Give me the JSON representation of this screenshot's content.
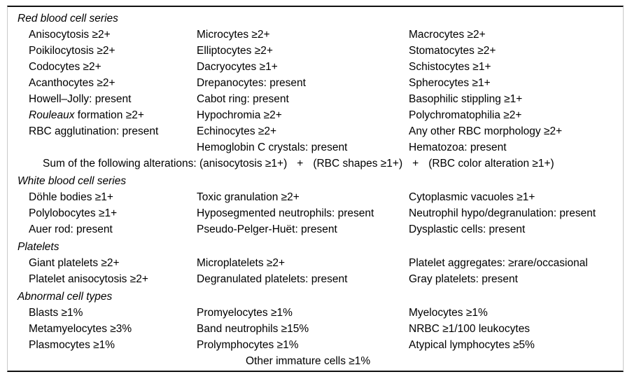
{
  "rbc": {
    "title": "Red blood cell series",
    "rows": [
      {
        "c1": "Anisocytosis ≥2+",
        "c2": "Microcytes ≥2+",
        "c3": "Macrocytes ≥2+"
      },
      {
        "c1": "Poikilocytosis ≥2+",
        "c2": "Elliptocytes ≥2+",
        "c3": "Stomatocytes ≥2+"
      },
      {
        "c1": "Codocytes ≥2+",
        "c2": "Dacryocytes ≥1+",
        "c3": "Schistocytes ≥1+"
      },
      {
        "c1": "Acanthocytes ≥2+",
        "c2": "Drepanocytes: present",
        "c3": "Spherocytes ≥1+"
      },
      {
        "c1": "Howell–Jolly: present",
        "c2": "Cabot ring: present",
        "c3": "Basophilic stippling ≥1+"
      },
      {
        "c1_italic": "Rouleaux",
        "c1_rest": " formation ≥2+",
        "c2": "Hypochromia ≥2+",
        "c3": "Polychromatophilia ≥2+"
      },
      {
        "c1": "RBC agglutination: present",
        "c2": "Echinocytes ≥2+",
        "c3": "Any other RBC morphology ≥2+"
      },
      {
        "c1": "",
        "c2": "Hemoglobin C crystals: present",
        "c3": "Hematozoa: present"
      }
    ],
    "sum": {
      "p1": "Sum of the following alterations: (anisocytosis ≥1+)",
      "plus1": "+",
      "p2": "(RBC shapes ≥1+)",
      "plus2": "+",
      "p3": "(RBC color alteration ≥1+)"
    }
  },
  "wbc": {
    "title": "White blood cell series",
    "rows": [
      {
        "c1": "Döhle bodies ≥1+",
        "c2": "Toxic granulation ≥2+",
        "c3": "Cytoplasmic vacuoles ≥1+"
      },
      {
        "c1": "Polylobocytes ≥1+",
        "c2": "Hyposegmented neutrophils: present",
        "c3": "Neutrophil hypo/degranulation: present"
      },
      {
        "c1": "Auer rod: present",
        "c2": "Pseudo-Pelger-Huët: present",
        "c3": "Dysplastic cells: present"
      }
    ]
  },
  "platelets": {
    "title": "Platelets",
    "rows": [
      {
        "c1": "Giant platelets ≥2+",
        "c2": "Microplatelets ≥2+",
        "c3": "Platelet aggregates: ≥rare/occasional"
      },
      {
        "c1": "Platelet anisocytosis ≥2+",
        "c2": "Degranulated platelets: present",
        "c3": "Gray platelets: present"
      }
    ]
  },
  "abnormal": {
    "title": "Abnormal cell types",
    "rows": [
      {
        "c1": "Blasts ≥1%",
        "c2": "Promyelocytes ≥1%",
        "c3": "Myelocytes ≥1%"
      },
      {
        "c1": "Metamyelocytes ≥3%",
        "c2": "Band neutrophils ≥15%",
        "c3": "NRBC ≥1/100 leukocytes"
      },
      {
        "c1": "Plasmocytes ≥1%",
        "c2": "Prolymphocytes ≥1%",
        "c3": "Atypical lymphocytes ≥5%"
      }
    ],
    "footer": "Other immature cells ≥1%"
  },
  "colors": {
    "rule": "#111111",
    "side_border": "#c8c8c8",
    "text": "#000000"
  }
}
